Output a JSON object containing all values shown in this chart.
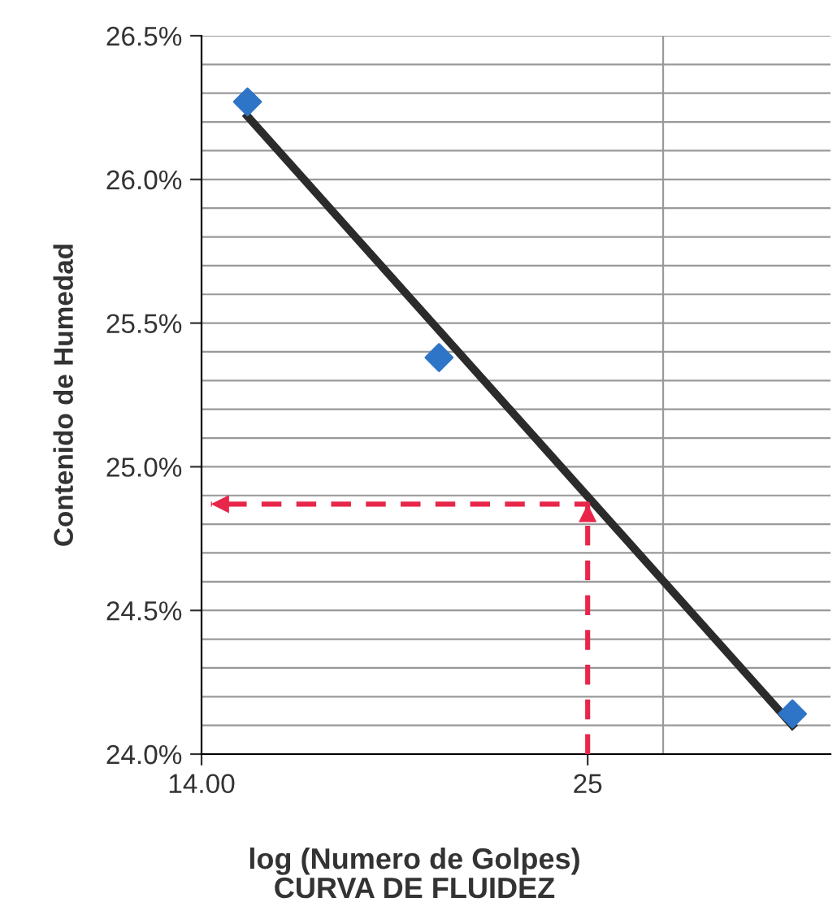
{
  "chart_data": {
    "type": "scatter",
    "title": "CURVA DE FLUIDEZ",
    "xlabel": "log (Numero de Golpes)",
    "ylabel": "Contenido de Humedad",
    "log": "x",
    "xlim": [
      14,
      36
    ],
    "ylim": [
      24.0,
      26.5
    ],
    "xticks": [
      {
        "value": 14,
        "label": "14.00"
      },
      25,
      {
        "value": 28,
        "label": null
      }
    ],
    "yticks": [
      {
        "value": 24.0,
        "label": "24.0%"
      },
      {
        "value": 24.1,
        "label": null
      },
      {
        "value": 24.2,
        "label": null
      },
      {
        "value": 24.3,
        "label": null
      },
      {
        "value": 24.4,
        "label": null
      },
      {
        "value": 24.5,
        "label": "24.5%"
      },
      {
        "value": 24.6,
        "label": null
      },
      {
        "value": 24.7,
        "label": null
      },
      {
        "value": 24.8,
        "label": null
      },
      {
        "value": 24.9,
        "label": null
      },
      {
        "value": 25.0,
        "label": "25.0%"
      },
      {
        "value": 25.1,
        "label": null
      },
      {
        "value": 25.2,
        "label": null
      },
      {
        "value": 25.3,
        "label": null
      },
      {
        "value": 25.4,
        "label": null
      },
      {
        "value": 25.5,
        "label": "25.5%"
      },
      {
        "value": 25.6,
        "label": null
      },
      {
        "value": 25.7,
        "label": null
      },
      {
        "value": 25.8,
        "label": null
      },
      {
        "value": 25.9,
        "label": null
      },
      {
        "value": 26.0,
        "label": "26.0%"
      },
      {
        "value": 26.1,
        "label": null
      },
      {
        "value": 26.2,
        "label": null
      },
      {
        "value": 26.3,
        "label": null
      },
      {
        "value": 26.4,
        "label": null
      },
      {
        "value": 26.5,
        "label": "26.5%"
      }
    ],
    "grid": true,
    "series": [
      {
        "type": "line",
        "color": "#2b2b2b",
        "x": [
          15,
          34
        ],
        "values": [
          26.22,
          24.1
        ],
        "marker": "none",
        "line_style": "solid"
      },
      {
        "color": "#2e75c8",
        "x": [
          15,
          20,
          34
        ],
        "values": [
          26.27,
          25.38,
          24.14
        ],
        "marker": "diamond"
      },
      {
        "type": "line",
        "color": "#e8264a",
        "x": [
          25,
          25,
          14.2
        ],
        "values": [
          24.0,
          24.87,
          24.87
        ],
        "marker": "none",
        "line_style": "dashed"
      }
    ]
  }
}
